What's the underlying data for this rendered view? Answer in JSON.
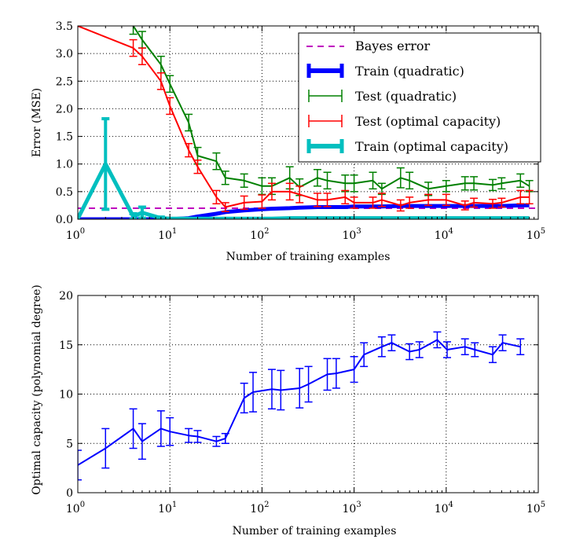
{
  "chart_data": [
    {
      "type": "line",
      "xlabel": "Number of training examples",
      "ylabel": "Error (MSE)",
      "xscale": "log",
      "xlim": [
        1,
        100000
      ],
      "ylim": [
        0,
        3.5
      ],
      "x_tick_labels": [
        "10",
        "10",
        "10",
        "10",
        "10",
        "10"
      ],
      "x_tick_exponents": [
        "0",
        "1",
        "2",
        "3",
        "4",
        "5"
      ],
      "y_ticks": [
        0.0,
        0.5,
        1.0,
        1.5,
        2.0,
        2.5,
        3.0,
        3.5
      ],
      "y_tick_labels": [
        "0.0",
        "0.5",
        "1.0",
        "1.5",
        "2.0",
        "2.5",
        "3.0",
        "3.5"
      ],
      "grid": true,
      "legend_position": "top-right",
      "bayes_error": 0.2,
      "legend": [
        {
          "label": "Bayes error",
          "color": "#bf00bf"
        },
        {
          "label": "Train (quadratic)",
          "color": "#0000ff"
        },
        {
          "label": "Test (quadratic)",
          "color": "#008000"
        },
        {
          "label": "Test (optimal capacity)",
          "color": "#ff0000"
        },
        {
          "label": "Train (optimal capacity)",
          "color": "#00bfbf"
        }
      ],
      "series": [
        {
          "name": "Train (quadratic)",
          "color": "#0000ff",
          "x": [
            1,
            2,
            4,
            5,
            8,
            10,
            16,
            20,
            32,
            40,
            64,
            100,
            128,
            200,
            256,
            400,
            512,
            800,
            1000,
            1600,
            2000,
            3200,
            4000,
            6400,
            10000,
            16000,
            20000,
            32000,
            40000,
            64000,
            80000
          ],
          "y": [
            0,
            0,
            0,
            0,
            0,
            0,
            0.02,
            0.05,
            0.1,
            0.13,
            0.16,
            0.18,
            0.19,
            0.2,
            0.21,
            0.22,
            0.22,
            0.22,
            0.23,
            0.23,
            0.23,
            0.24,
            0.24,
            0.24,
            0.24,
            0.24,
            0.24,
            0.24,
            0.24,
            0.25,
            0.25
          ]
        },
        {
          "name": "Test (quadratic)",
          "color": "#008000",
          "x": [
            4,
            5,
            8,
            10,
            16,
            20,
            32,
            40,
            64,
            100,
            128,
            200,
            256,
            400,
            512,
            800,
            1000,
            1600,
            2000,
            3200,
            4000,
            6400,
            10000,
            16000,
            20000,
            32000,
            40000,
            64000,
            80000
          ],
          "y": [
            3.5,
            3.25,
            2.8,
            2.45,
            1.75,
            1.15,
            1.05,
            0.75,
            0.7,
            0.6,
            0.6,
            0.75,
            0.58,
            0.75,
            0.7,
            0.65,
            0.65,
            0.7,
            0.55,
            0.75,
            0.7,
            0.55,
            0.6,
            0.65,
            0.65,
            0.62,
            0.65,
            0.7,
            0.6
          ],
          "yerr": [
            0.15,
            0.15,
            0.15,
            0.15,
            0.15,
            0.15,
            0.15,
            0.12,
            0.12,
            0.15,
            0.15,
            0.2,
            0.15,
            0.15,
            0.15,
            0.15,
            0.15,
            0.15,
            0.1,
            0.18,
            0.15,
            0.12,
            0.1,
            0.12,
            0.12,
            0.1,
            0.1,
            0.12,
            0.1
          ]
        },
        {
          "name": "Test (optimal capacity)",
          "color": "#ff0000",
          "x": [
            1,
            4,
            5,
            8,
            10,
            16,
            20,
            32,
            40,
            64,
            100,
            128,
            200,
            256,
            400,
            512,
            800,
            1000,
            1600,
            2000,
            3200,
            4000,
            6400,
            10000,
            16000,
            20000,
            32000,
            40000,
            64000,
            80000
          ],
          "y": [
            3.5,
            3.1,
            2.95,
            2.5,
            2.05,
            1.25,
            0.95,
            0.4,
            0.22,
            0.3,
            0.32,
            0.5,
            0.5,
            0.45,
            0.35,
            0.35,
            0.4,
            0.3,
            0.3,
            0.35,
            0.25,
            0.3,
            0.35,
            0.35,
            0.25,
            0.3,
            0.28,
            0.3,
            0.4,
            0.4
          ],
          "yerr": [
            0.0,
            0.15,
            0.15,
            0.15,
            0.15,
            0.12,
            0.12,
            0.12,
            0.08,
            0.12,
            0.12,
            0.15,
            0.15,
            0.15,
            0.12,
            0.12,
            0.12,
            0.1,
            0.1,
            0.12,
            0.1,
            0.1,
            0.1,
            0.1,
            0.08,
            0.08,
            0.08,
            0.08,
            0.12,
            0.12
          ]
        },
        {
          "name": "Train (optimal capacity)",
          "color": "#00bfbf",
          "x": [
            1,
            2,
            4,
            5,
            8,
            10,
            16,
            20,
            32,
            40,
            64,
            100,
            128,
            200,
            256,
            400,
            512,
            800,
            1000,
            1600,
            2000,
            3200,
            4000,
            6400,
            10000,
            16000,
            20000,
            32000,
            40000,
            64000,
            80000
          ],
          "y": [
            0.01,
            1.0,
            0.05,
            0.12,
            0.02,
            0.01,
            0.01,
            0.01,
            0.01,
            0.01,
            0.01,
            0.01,
            0.01,
            0.02,
            0.02,
            0.02,
            0.02,
            0.02,
            0.02,
            0.02,
            0.02,
            0.02,
            0.02,
            0.02,
            0.02,
            0.02,
            0.02,
            0.02,
            0.02,
            0.02,
            0.02
          ],
          "yerr": [
            0.0,
            0.82,
            0.05,
            0.1,
            0.02,
            0.0,
            0.0,
            0.0,
            0.0,
            0.0,
            0.0,
            0.0,
            0.0,
            0.0,
            0.0,
            0.0,
            0.0,
            0.0,
            0.0,
            0.0,
            0.0,
            0.0,
            0.0,
            0.0,
            0.0,
            0.0,
            0.0,
            0.0,
            0.0,
            0.0,
            0.0
          ]
        }
      ]
    },
    {
      "type": "line",
      "xlabel": "Number of training examples",
      "ylabel": "Optimal capacity (polynomial degree)",
      "xscale": "log",
      "xlim": [
        1,
        100000
      ],
      "ylim": [
        0,
        20
      ],
      "x_tick_labels": [
        "10",
        "10",
        "10",
        "10",
        "10",
        "10"
      ],
      "x_tick_exponents": [
        "0",
        "1",
        "2",
        "3",
        "4",
        "5"
      ],
      "y_ticks": [
        0,
        5,
        10,
        15,
        20
      ],
      "y_tick_labels": [
        "0",
        "5",
        "10",
        "15",
        "20"
      ],
      "grid": true,
      "series": [
        {
          "color": "#0000ff",
          "x": [
            1,
            2,
            4,
            5,
            8,
            10,
            16,
            20,
            32,
            40,
            64,
            80,
            128,
            160,
            256,
            320,
            512,
            640,
            1000,
            1280,
            2000,
            2560,
            4000,
            5120,
            8000,
            10240,
            16000,
            20480,
            32000,
            40960,
            64000
          ],
          "y": [
            2.8,
            4.5,
            6.5,
            5.2,
            6.5,
            6.2,
            5.8,
            5.7,
            5.2,
            5.5,
            9.6,
            10.2,
            10.5,
            10.4,
            10.6,
            11.0,
            12.0,
            12.1,
            12.5,
            14.0,
            14.8,
            15.2,
            14.3,
            14.5,
            15.5,
            14.5,
            14.8,
            14.5,
            14.0,
            15.2,
            14.8
          ],
          "yerr": [
            1.5,
            2.0,
            2.0,
            1.8,
            1.8,
            1.4,
            0.7,
            0.6,
            0.5,
            0.5,
            1.5,
            2.0,
            2.0,
            2.0,
            2.0,
            1.8,
            1.6,
            1.5,
            1.3,
            1.2,
            1.0,
            0.8,
            0.8,
            0.8,
            0.8,
            0.8,
            0.8,
            0.7,
            0.8,
            0.8,
            0.8
          ]
        }
      ]
    }
  ]
}
